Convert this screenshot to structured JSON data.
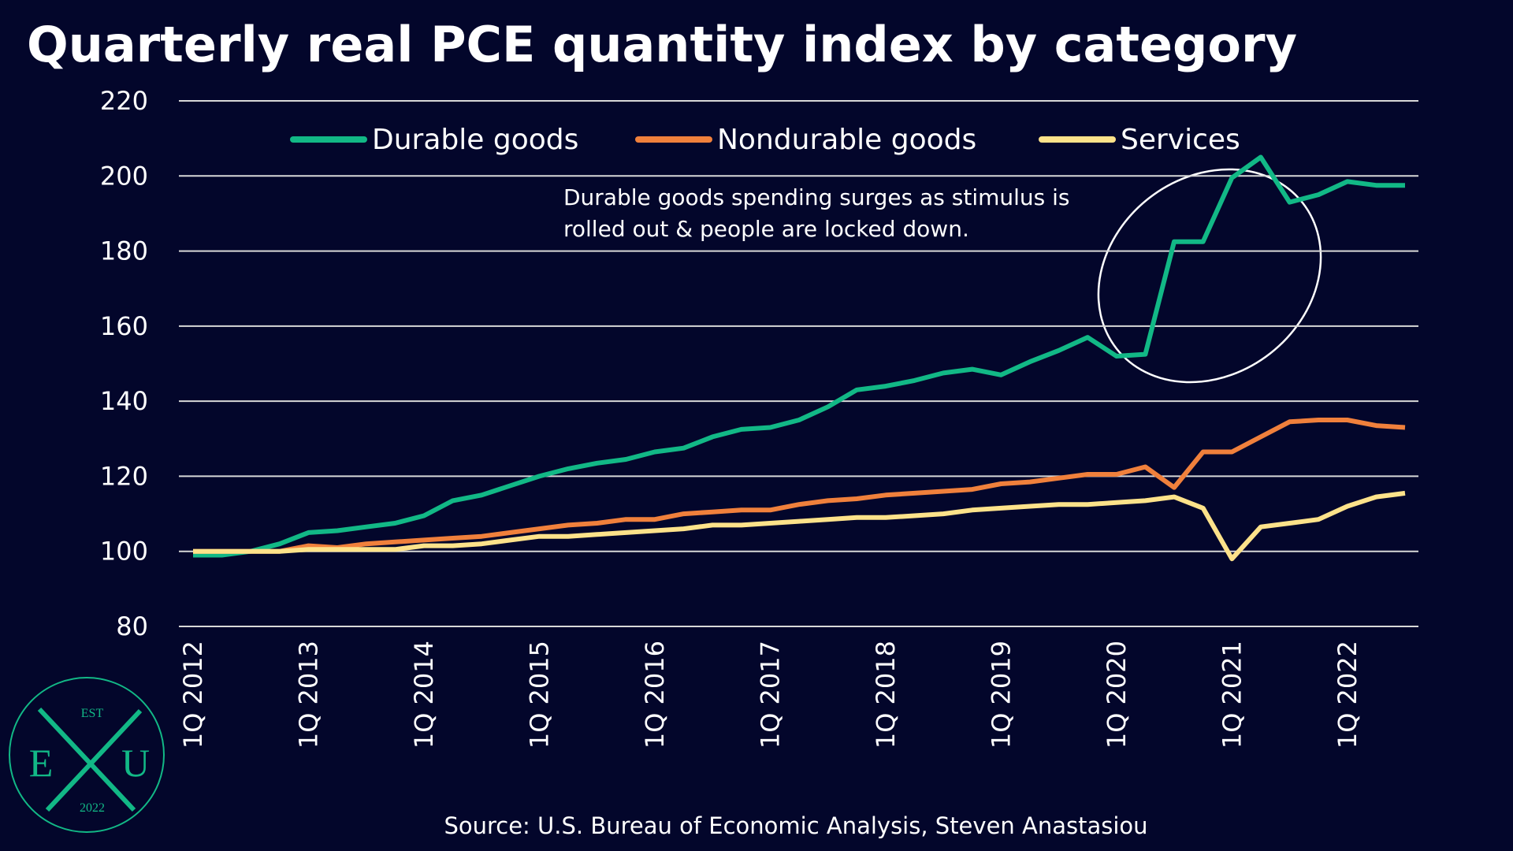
{
  "chart_data": {
    "type": "line",
    "title": "Quarterly real PCE quantity index by category",
    "annotation": [
      "Durable goods spending surges as stimulus is",
      "rolled out & people are locked down."
    ],
    "source": "Source: U.S. Bureau of Economic Analysis, Steven Anastasiou",
    "categories": [
      "1Q 2012",
      null,
      null,
      null,
      "1Q 2013",
      null,
      null,
      null,
      "1Q 2014",
      null,
      null,
      null,
      "1Q 2015",
      null,
      null,
      null,
      "1Q 2016",
      null,
      null,
      null,
      "1Q 2017",
      null,
      null,
      null,
      "1Q 2018",
      null,
      null,
      null,
      "1Q 2019",
      null,
      null,
      null,
      "1Q 2020",
      null,
      null,
      null,
      "1Q 2021",
      null,
      null,
      null,
      "1Q 2022",
      null,
      null
    ],
    "series": [
      {
        "name": "Durable goods",
        "color": "#12b886",
        "values": [
          99,
          99,
          100,
          102,
          105,
          105.5,
          106.5,
          107.5,
          109.5,
          113.5,
          115,
          117.5,
          120,
          122,
          123.5,
          124.5,
          126.5,
          127.5,
          130.5,
          132.5,
          133,
          135,
          138.5,
          143,
          144,
          145.5,
          147.5,
          148.5,
          147,
          150.5,
          153.5,
          157,
          152,
          152.5,
          182.5,
          182.5,
          199.5,
          205,
          193,
          195,
          198.5,
          197.5,
          197.5
        ]
      },
      {
        "name": "Nondurable goods",
        "color": "#f0803c",
        "values": [
          100,
          100,
          100,
          100,
          101.5,
          101,
          102,
          102.5,
          103,
          103.5,
          104,
          105,
          106,
          107,
          107.5,
          108.5,
          108.5,
          110,
          110.5,
          111,
          111,
          112.5,
          113.5,
          114,
          115,
          115.5,
          116,
          116.5,
          118,
          118.5,
          119.5,
          120.5,
          120.5,
          122.5,
          117,
          126.5,
          126.5,
          130.5,
          134.5,
          135,
          135,
          133.5,
          133
        ]
      },
      {
        "name": "Services",
        "color": "#fde28a",
        "values": [
          100,
          100,
          100,
          100,
          100.5,
          100.5,
          100.5,
          100.5,
          101.5,
          101.5,
          102,
          103,
          104,
          104,
          104.5,
          105,
          105.5,
          106,
          107,
          107,
          107.5,
          108,
          108.5,
          109,
          109,
          109.5,
          110,
          111,
          111.5,
          112,
          112.5,
          112.5,
          113,
          113.5,
          114.5,
          111.5,
          98,
          106.5,
          107.5,
          108.5,
          112,
          114.5,
          115.5
        ]
      }
    ],
    "ylim": [
      80,
      220
    ],
    "yticks": [
      80,
      100,
      120,
      140,
      160,
      180,
      200,
      220
    ],
    "grid": true
  },
  "logo": {
    "top": "EST",
    "left": "E",
    "right": "U",
    "bottom": "2022"
  }
}
